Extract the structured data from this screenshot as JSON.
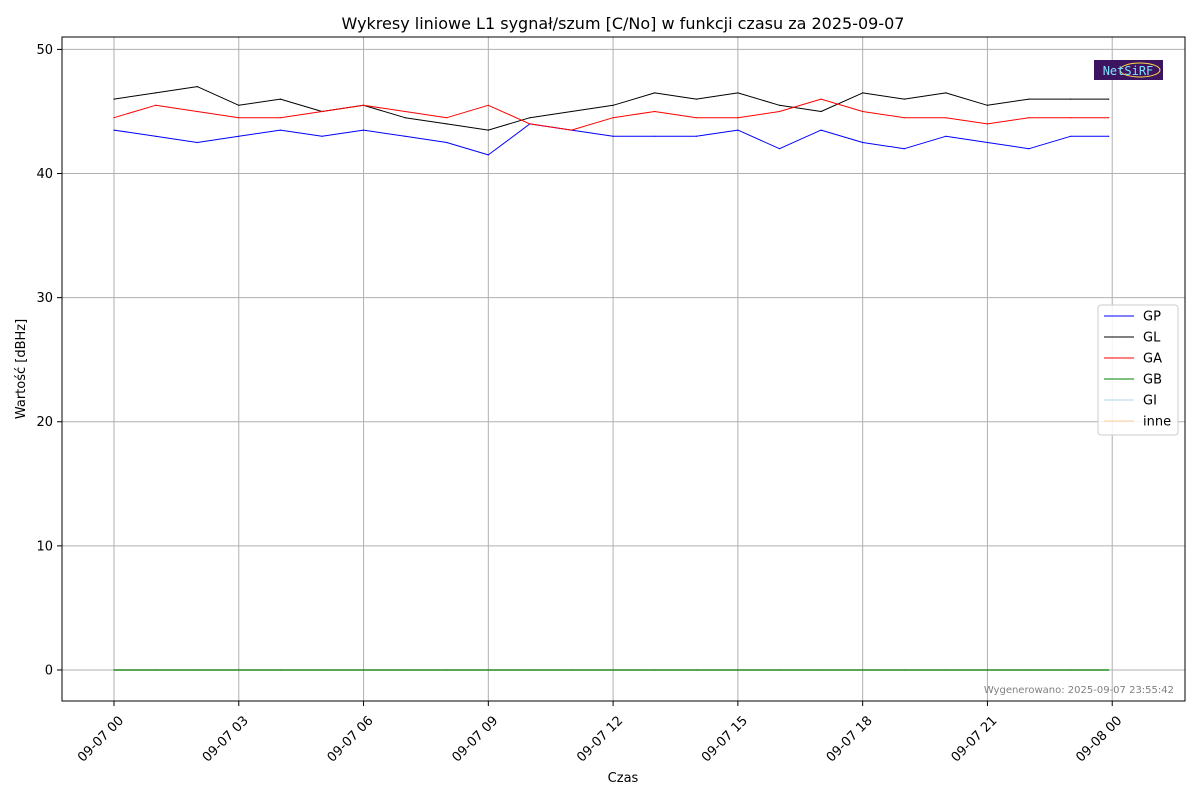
{
  "chart_data": {
    "type": "line",
    "title": "Wykresy liniowe L1 sygnał/szum [C/No] w funkcji czasu za 2025-09-07",
    "xlabel": "Czas",
    "ylabel": "Wartość [dBHz]",
    "xlim": [
      "2025-09-06 22:45",
      "2025-09-08 01:45"
    ],
    "ylim": [
      -2.5,
      51
    ],
    "x_ticks": [
      {
        "value": "2025-09-07 00:00",
        "label": "09-07 00"
      },
      {
        "value": "2025-09-07 03:00",
        "label": "09-07 03"
      },
      {
        "value": "2025-09-07 06:00",
        "label": "09-07 06"
      },
      {
        "value": "2025-09-07 09:00",
        "label": "09-07 09"
      },
      {
        "value": "2025-09-07 12:00",
        "label": "09-07 12"
      },
      {
        "value": "2025-09-07 15:00",
        "label": "09-07 15"
      },
      {
        "value": "2025-09-07 18:00",
        "label": "09-07 18"
      },
      {
        "value": "2025-09-07 21:00",
        "label": "09-07 21"
      },
      {
        "value": "2025-09-08 00:00",
        "label": "09-08 00"
      }
    ],
    "y_ticks": [
      0,
      10,
      20,
      30,
      40,
      50
    ],
    "grid": true,
    "legend_position": "right",
    "x": [
      "2025-09-07 00:00",
      "2025-09-07 01:00",
      "2025-09-07 02:00",
      "2025-09-07 03:00",
      "2025-09-07 04:00",
      "2025-09-07 05:00",
      "2025-09-07 06:00",
      "2025-09-07 07:00",
      "2025-09-07 08:00",
      "2025-09-07 09:00",
      "2025-09-07 10:00",
      "2025-09-07 11:00",
      "2025-09-07 12:00",
      "2025-09-07 13:00",
      "2025-09-07 14:00",
      "2025-09-07 15:00",
      "2025-09-07 16:00",
      "2025-09-07 17:00",
      "2025-09-07 18:00",
      "2025-09-07 19:00",
      "2025-09-07 20:00",
      "2025-09-07 21:00",
      "2025-09-07 22:00",
      "2025-09-07 23:00",
      "2025-09-07 23:55"
    ],
    "series": [
      {
        "name": "GP",
        "color": "#0000ff",
        "values": [
          43.5,
          43.0,
          42.5,
          43.0,
          43.5,
          43.0,
          43.5,
          43.0,
          42.5,
          41.5,
          44.0,
          43.5,
          43.0,
          43.0,
          43.0,
          43.5,
          42.0,
          43.5,
          42.5,
          42.0,
          43.0,
          42.5,
          42.0,
          43.0,
          43.0
        ]
      },
      {
        "name": "GL",
        "color": "#000000",
        "values": [
          46.0,
          46.5,
          47.0,
          45.5,
          46.0,
          45.0,
          45.5,
          44.5,
          44.0,
          43.5,
          44.5,
          45.0,
          45.5,
          46.5,
          46.0,
          46.5,
          45.5,
          45.0,
          46.5,
          46.0,
          46.5,
          45.5,
          46.0,
          46.0,
          46.0
        ]
      },
      {
        "name": "GA",
        "color": "#ff0000",
        "values": [
          44.5,
          45.5,
          45.0,
          44.5,
          44.5,
          45.0,
          45.5,
          45.0,
          44.5,
          45.5,
          44.0,
          43.5,
          44.5,
          45.0,
          44.5,
          44.5,
          45.0,
          46.0,
          45.0,
          44.5,
          44.5,
          44.0,
          44.5,
          44.5,
          44.5
        ]
      },
      {
        "name": "GB",
        "color": "#008000",
        "values": [
          0,
          0,
          0,
          0,
          0,
          0,
          0,
          0,
          0,
          0,
          0,
          0,
          0,
          0,
          0,
          0,
          0,
          0,
          0,
          0,
          0,
          0,
          0,
          0,
          0
        ]
      },
      {
        "name": "GI",
        "color": "#add8e6",
        "values": [
          0,
          0,
          0,
          0,
          0,
          0,
          0,
          0,
          0,
          0,
          0,
          0,
          0,
          0,
          0,
          0,
          0,
          0,
          0,
          0,
          0,
          0,
          0,
          0,
          0
        ]
      },
      {
        "name": "inne",
        "color": "#ffcc99",
        "values": [
          0,
          0,
          0,
          0,
          0,
          0,
          0,
          0,
          0,
          0,
          0,
          0,
          0,
          0,
          0,
          0,
          0,
          0,
          0,
          0,
          0,
          0,
          0,
          0,
          0
        ]
      }
    ],
    "annotations": [
      {
        "text": "Wygenerowano: 2025-09-07 23:55:42",
        "position": "bottom-right"
      }
    ]
  },
  "logo": {
    "text": "NetSiRF",
    "colors": {
      "background": "#3d1460",
      "text": "#7fe0ff",
      "accent": "#ffd84a"
    }
  }
}
